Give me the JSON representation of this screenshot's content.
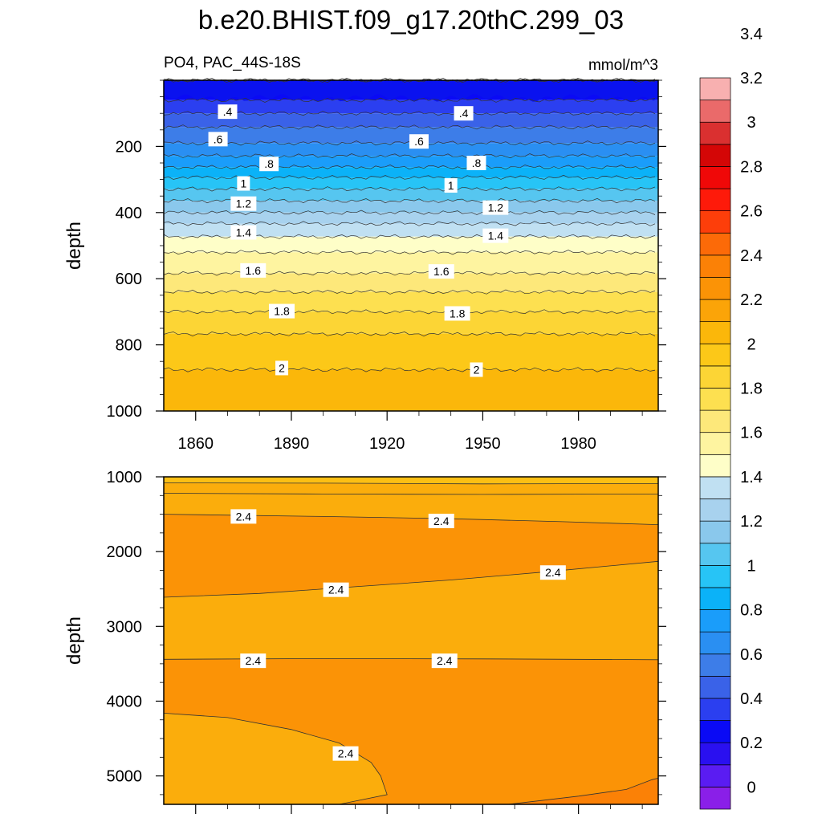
{
  "title": "b.e20.BHIST.f09_g17.20thC.299_03",
  "variable_label": "PO4, PAC_44S-18S",
  "units_label": "mmol/m^3",
  "colors": {
    "fills": [
      "#8a1fe8",
      "#5a1cf2",
      "#2a10f0",
      "#0a0af5",
      "#2b3ff0",
      "#3a62e8",
      "#3d7de8",
      "#2a8ff2",
      "#1a9dfa",
      "#0bb2f8",
      "#27c4f6",
      "#56c6f0",
      "#8ac8ec",
      "#a8d2ee",
      "#c0e0f2",
      "#fefec8",
      "#fef4a0",
      "#fde87a",
      "#fde050",
      "#fcd535",
      "#fcc818",
      "#fbb70a",
      "#fba408",
      "#fb9306",
      "#fb8106",
      "#fc6a08",
      "#fd3e0a",
      "#fe1a0a",
      "#f00808",
      "#d40606",
      "#da3030",
      "#ea6a6a",
      "#f8b0b0"
    ],
    "contour_line": "#333333"
  },
  "chart_data": [
    {
      "panel": "upper",
      "type": "contour",
      "title": "",
      "xlabel": "",
      "ylabel": "depth",
      "xlim": [
        1850,
        2005
      ],
      "ylim": [
        1000,
        0
      ],
      "xticks": [
        1860,
        1890,
        1920,
        1950,
        1980
      ],
      "yticks": [
        200,
        400,
        600,
        800,
        1000
      ],
      "depth_profile": {
        "depth": [
          0,
          60,
          100,
          150,
          200,
          250,
          300,
          350,
          400,
          450,
          500,
          550,
          600,
          650,
          700,
          750,
          800,
          850,
          900,
          950,
          1000
        ],
        "value": [
          0.2,
          0.3,
          0.4,
          0.52,
          0.62,
          0.76,
          0.92,
          1.06,
          1.2,
          1.35,
          1.46,
          1.56,
          1.62,
          1.72,
          1.8,
          1.88,
          1.94,
          1.98,
          2.02,
          2.06,
          2.1
        ]
      },
      "contour_levels": [
        0.4,
        0.6,
        0.8,
        1,
        1.2,
        1.4,
        1.6,
        1.8,
        2
      ],
      "contour_labels": [
        {
          "text": ".4",
          "x": 1870,
          "depth": 95
        },
        {
          "text": ".4",
          "x": 1944,
          "depth": 100
        },
        {
          "text": ".6",
          "x": 1867,
          "depth": 178
        },
        {
          "text": ".6",
          "x": 1930,
          "depth": 185
        },
        {
          "text": ".8",
          "x": 1883,
          "depth": 253
        },
        {
          "text": ".8",
          "x": 1948,
          "depth": 250
        },
        {
          "text": "1",
          "x": 1875,
          "depth": 312
        },
        {
          "text": "1",
          "x": 1940,
          "depth": 318
        },
        {
          "text": "1.2",
          "x": 1875,
          "depth": 373
        },
        {
          "text": "1.2",
          "x": 1954,
          "depth": 385
        },
        {
          "text": "1.4",
          "x": 1875,
          "depth": 460
        },
        {
          "text": "1.4",
          "x": 1954,
          "depth": 470
        },
        {
          "text": "1.6",
          "x": 1878,
          "depth": 575
        },
        {
          "text": "1.6",
          "x": 1937,
          "depth": 578
        },
        {
          "text": "1.8",
          "x": 1887,
          "depth": 698
        },
        {
          "text": "1.8",
          "x": 1942,
          "depth": 705
        },
        {
          "text": "2",
          "x": 1887,
          "depth": 870
        },
        {
          "text": "2",
          "x": 1948,
          "depth": 875
        }
      ]
    },
    {
      "panel": "lower",
      "type": "contour",
      "title": "",
      "xlabel": "",
      "ylabel": "depth",
      "xlim": [
        1850,
        2005
      ],
      "ylim": [
        5380,
        1000
      ],
      "xticks": [
        1860,
        1890,
        1920,
        1950,
        1980
      ],
      "yticks": [
        1000,
        2000,
        3000,
        4000,
        5000
      ],
      "regions": [
        {
          "band": "2.2-2.3",
          "description": "thin band near 1000 depth"
        },
        {
          "band": "2.3-2.4",
          "description": "upper layer above 2.4 contour"
        },
        {
          "band": "2.4-2.5",
          "description": "main orange layer"
        }
      ],
      "contour_levels": [
        2.4
      ],
      "contour_labels": [
        {
          "text": "2.4",
          "x": 1875,
          "depth": 1530
        },
        {
          "text": "2.4",
          "x": 1937,
          "depth": 1590
        },
        {
          "text": "2.4",
          "x": 1904,
          "depth": 2510
        },
        {
          "text": "2.4",
          "x": 1972,
          "depth": 2280
        },
        {
          "text": "2.4",
          "x": 1878,
          "depth": 3460
        },
        {
          "text": "2.4",
          "x": 1938,
          "depth": 3460
        },
        {
          "text": "2.4",
          "x": 1907,
          "depth": 4700
        }
      ]
    },
    {
      "panel": "colorbar",
      "type": "colorbar",
      "levels": [
        0,
        0.1,
        0.2,
        0.3,
        0.4,
        0.5,
        0.6,
        0.7,
        0.8,
        0.9,
        1,
        1.1,
        1.2,
        1.3,
        1.4,
        1.5,
        1.6,
        1.7,
        1.8,
        1.9,
        2,
        2.1,
        2.2,
        2.3,
        2.4,
        2.5,
        2.6,
        2.7,
        2.8,
        2.9,
        3,
        3.1,
        3.2,
        3.3,
        3.4,
        3.5
      ],
      "tick_labels": [
        "0",
        "0.2",
        "0.4",
        "0.6",
        "0.8",
        "1",
        "1.2",
        "1.4",
        "1.6",
        "1.8",
        "2",
        "2.2",
        "2.4",
        "2.6",
        "2.8",
        "3",
        "3.2",
        "3.4"
      ]
    }
  ]
}
